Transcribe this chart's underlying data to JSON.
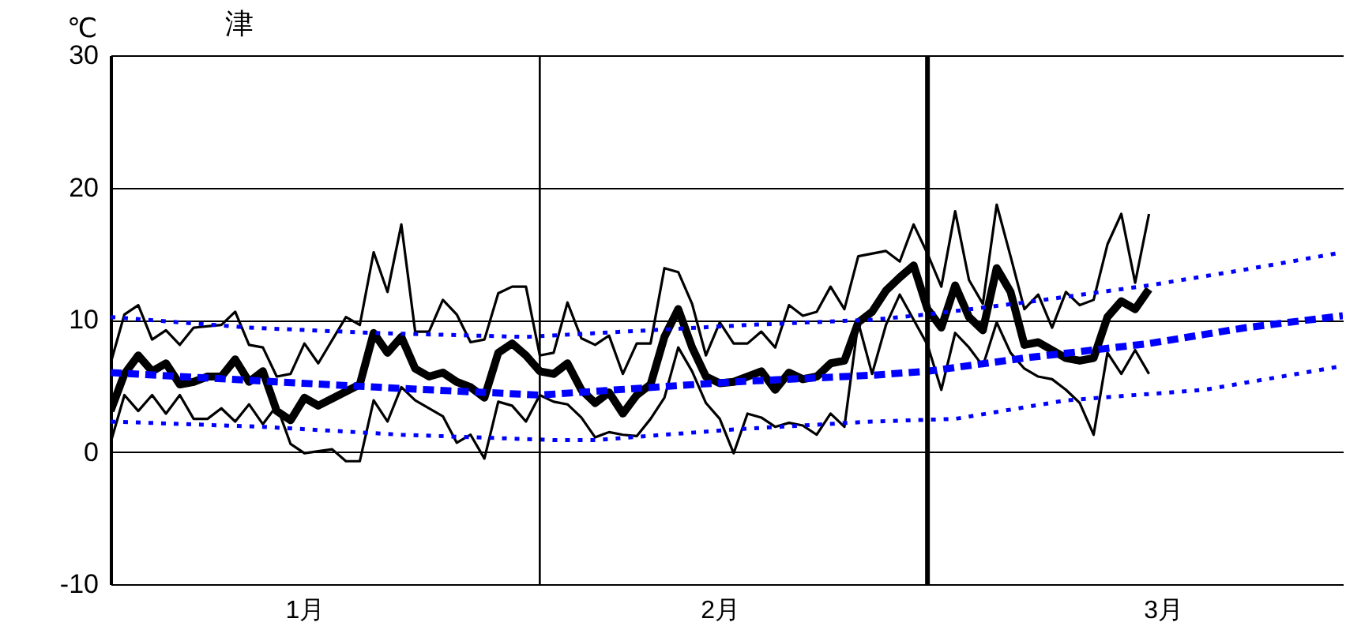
{
  "chart_data": {
    "type": "line",
    "title": "津",
    "ylabel": "℃",
    "xlim": [
      "--01-01",
      "--03-31"
    ],
    "ylim": [
      -10,
      30
    ],
    "yticks": [
      -10,
      0,
      10,
      20,
      30
    ],
    "xticks": [
      {
        "value": "--01-15",
        "label": "1月"
      },
      {
        "value": "--02-14",
        "label": "2月"
      },
      {
        "value": "--03-18",
        "label": "3月"
      }
    ],
    "grid": "y",
    "ref_lines": [
      {
        "axis": "x",
        "value": "--02-01",
        "color": "#000000"
      },
      {
        "axis": "x",
        "value": "--03-01",
        "color": "#000000"
      }
    ],
    "series": [
      {
        "color": "#000000",
        "line_style": "solid",
        "x": [
          "--01-01",
          "--01-02",
          "--01-03",
          "--01-04",
          "--01-05",
          "--01-06",
          "--01-07",
          "--01-09",
          "--01-10",
          "--01-11",
          "--01-12",
          "--01-13",
          "--01-14",
          "--01-15",
          "--01-16",
          "--01-18",
          "--01-19",
          "--01-20",
          "--01-21",
          "--01-22",
          "--01-23",
          "--01-24",
          "--01-25",
          "--01-26",
          "--01-27",
          "--01-28",
          "--01-29",
          "--01-30",
          "--01-31",
          "--02-01",
          "--02-02",
          "--02-03",
          "--02-04",
          "--02-05",
          "--02-06",
          "--02-07",
          "--02-08",
          "--02-09",
          "--02-10",
          "--02-11",
          "--02-12",
          "--02-13",
          "--02-14",
          "--02-15",
          "--02-16",
          "--02-17",
          "--02-18",
          "--02-19",
          "--02-20",
          "--02-21",
          "--02-22",
          "--02-23",
          "--02-24",
          "--02-26",
          "--02-27",
          "--02-28",
          "--03-01",
          "--03-02",
          "--03-03",
          "--03-04",
          "--03-05",
          "--03-06",
          "--03-07",
          "--03-08",
          "--03-09",
          "--03-10",
          "--03-11",
          "--03-12",
          "--03-13",
          "--03-14",
          "--03-15",
          "--03-16",
          "--03-17"
        ],
        "values": [
          6.7,
          10.4,
          11.1,
          8.5,
          9.2,
          8.1,
          9.4,
          9.6,
          10.6,
          8.1,
          7.9,
          5.7,
          5.9,
          8.2,
          6.7,
          10.2,
          9.6,
          15.1,
          12.1,
          17.2,
          9.1,
          9.1,
          11.5,
          10.4,
          8.3,
          8.5,
          12.0,
          12.5,
          12.5,
          7.3,
          7.5,
          11.3,
          8.6,
          8.1,
          8.8,
          5.9,
          8.2,
          8.2,
          13.9,
          13.6,
          11.2,
          7.3,
          9.8,
          8.2,
          8.2,
          9.1,
          7.9,
          11.1,
          10.3,
          10.6,
          12.5,
          10.8,
          14.8,
          15.2,
          14.4,
          17.2,
          15.0,
          12.5,
          18.2,
          13.0,
          11.2,
          18.7,
          14.8,
          10.8,
          11.9,
          9.4,
          12.1,
          11.1,
          11.5,
          15.7,
          18.0,
          12.8,
          18.0
        ]
      },
      {
        "color": "#000000",
        "line_style": "solid",
        "x": [
          "--01-01",
          "--01-02",
          "--01-03",
          "--01-04",
          "--01-05",
          "--01-06",
          "--01-07",
          "--01-08",
          "--01-09",
          "--01-10",
          "--01-11",
          "--01-12",
          "--01-13",
          "--01-14",
          "--01-15",
          "--01-16",
          "--01-19",
          "--01-20",
          "--01-21",
          "--01-22",
          "--01-23",
          "--01-24",
          "--01-25",
          "--01-26",
          "--01-27",
          "--01-28",
          "--01-29",
          "--01-30",
          "--01-31",
          "--02-01",
          "--02-02",
          "--02-03",
          "--02-04",
          "--02-05",
          "--02-06",
          "--02-07",
          "--02-08",
          "--02-09",
          "--02-10",
          "--02-11",
          "--02-12",
          "--02-13",
          "--02-14",
          "--02-15",
          "--02-17",
          "--02-18",
          "--02-19",
          "--02-20",
          "--02-21",
          "--02-22",
          "--02-23",
          "--02-24",
          "--02-25",
          "--02-26",
          "--02-27",
          "--02-28",
          "--03-01",
          "--03-02",
          "--03-03",
          "--03-04",
          "--03-05",
          "--03-06",
          "--03-07",
          "--03-08",
          "--03-09",
          "--03-10",
          "--03-11",
          "--03-12",
          "--03-13",
          "--03-14",
          "--03-15",
          "--03-16",
          "--03-17"
        ],
        "values": [
          3.1,
          5.9,
          7.3,
          6.1,
          6.7,
          5.1,
          5.3,
          5.7,
          5.7,
          7.0,
          5.3,
          6.1,
          3.1,
          2.4,
          4.1,
          3.5,
          5.1,
          9.0,
          7.5,
          8.7,
          6.3,
          5.7,
          6.0,
          5.3,
          4.9,
          4.1,
          7.5,
          8.2,
          7.3,
          6.1,
          5.9,
          6.7,
          4.7,
          3.7,
          4.5,
          2.9,
          4.3,
          5.1,
          8.7,
          10.8,
          7.9,
          5.7,
          5.2,
          5.3,
          6.1,
          4.7,
          6.0,
          5.5,
          5.7,
          6.7,
          6.9,
          9.8,
          10.6,
          12.2,
          13.2,
          14.1,
          10.8,
          9.4,
          12.6,
          10.2,
          9.2,
          13.9,
          12.1,
          8.1,
          8.3,
          7.7,
          7.1,
          6.9,
          7.1,
          10.2,
          11.4,
          10.8,
          12.3
        ]
      },
      {
        "color": "#000000",
        "line_style": "solid",
        "x": [
          "--01-01",
          "--01-02",
          "--01-03",
          "--01-04",
          "--01-05",
          "--01-06",
          "--01-07",
          "--01-08",
          "--01-09",
          "--01-10",
          "--01-11",
          "--01-12",
          "--01-13",
          "--01-14",
          "--01-15",
          "--01-17",
          "--01-18",
          "--01-19",
          "--01-20",
          "--01-21",
          "--01-22",
          "--01-23",
          "--01-25",
          "--01-26",
          "--01-27",
          "--01-28",
          "--01-29",
          "--01-30",
          "--01-31",
          "--02-01",
          "--02-02",
          "--02-03",
          "--02-04",
          "--02-05",
          "--02-06",
          "--02-07",
          "--02-08",
          "--02-09",
          "--02-10",
          "--02-11",
          "--02-12",
          "--02-13",
          "--02-14",
          "--02-15",
          "--02-16",
          "--02-17",
          "--02-18",
          "--02-19",
          "--02-20",
          "--02-21",
          "--02-22",
          "--02-23",
          "--02-24",
          "--02-25",
          "--02-26",
          "--02-27",
          "--02-28",
          "--03-01",
          "--03-02",
          "--03-03",
          "--03-04",
          "--03-05",
          "--03-06",
          "--03-07",
          "--03-08",
          "--03-09",
          "--03-10",
          "--03-11",
          "--03-12",
          "--03-13",
          "--03-14",
          "--03-15",
          "--03-16",
          "--03-17"
        ],
        "values": [
          0.7,
          4.3,
          3.1,
          4.3,
          2.9,
          4.3,
          2.5,
          2.5,
          3.3,
          2.3,
          3.6,
          2.1,
          3.5,
          0.6,
          -0.1,
          0.2,
          -0.7,
          -0.7,
          3.9,
          2.3,
          4.9,
          3.9,
          2.7,
          0.7,
          1.3,
          -0.5,
          3.8,
          3.5,
          2.3,
          4.3,
          3.8,
          3.6,
          2.6,
          1.1,
          1.5,
          1.3,
          1.2,
          2.5,
          4.1,
          7.9,
          6.1,
          3.7,
          2.5,
          -0.1,
          2.9,
          2.6,
          1.9,
          2.2,
          2.0,
          1.3,
          2.9,
          1.9,
          9.8,
          5.9,
          9.6,
          11.9,
          10.0,
          8.1,
          4.7,
          9.0,
          7.9,
          6.5,
          9.8,
          7.5,
          6.3,
          5.7,
          5.5,
          4.7,
          3.7,
          1.3,
          7.5,
          5.9,
          7.7,
          5.9
        ]
      },
      {
        "color": "#0000ff",
        "line_style": "dotted",
        "x": [
          "--01-01",
          "--01-11",
          "--01-20",
          "--01-31",
          "--02-16",
          "--02-25",
          "--03-01",
          "--03-08",
          "--03-17",
          "--03-24",
          "--03-31"
        ],
        "values": [
          10.2,
          9.4,
          9.0,
          8.7,
          9.6,
          10.0,
          10.4,
          11.3,
          12.6,
          13.8,
          15.1
        ]
      },
      {
        "color": "#0000ff",
        "line_style": "dashed",
        "x": [
          "--01-01",
          "--01-13",
          "--01-22",
          "--02-01",
          "--02-15",
          "--02-25",
          "--03-01",
          "--03-08",
          "--03-17",
          "--03-24",
          "--03-31"
        ],
        "values": [
          6.0,
          5.3,
          4.8,
          4.3,
          5.3,
          5.8,
          6.1,
          7.1,
          8.2,
          9.4,
          10.3
        ]
      },
      {
        "color": "#0000ff",
        "line_style": "dotted",
        "x": [
          "--01-01",
          "--01-12",
          "--01-22",
          "--02-02",
          "--02-05",
          "--02-15",
          "--02-25",
          "--03-03",
          "--03-11",
          "--03-21",
          "--03-31"
        ],
        "values": [
          2.3,
          1.9,
          1.3,
          0.9,
          0.9,
          1.7,
          2.3,
          2.5,
          3.9,
          4.7,
          6.5
        ]
      }
    ]
  }
}
